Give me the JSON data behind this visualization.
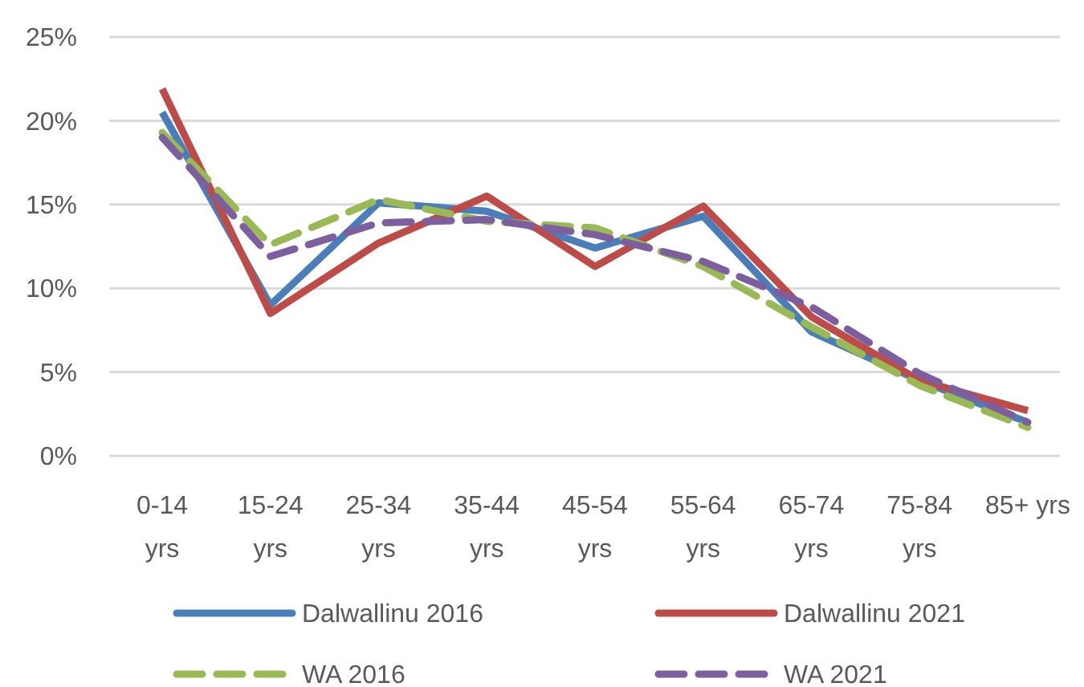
{
  "chart_data": {
    "type": "line",
    "categories": [
      "0-14 yrs",
      "15-24 yrs",
      "25-34 yrs",
      "35-44 yrs",
      "45-54 yrs",
      "55-64 yrs",
      "65-74 yrs",
      "75-84 yrs",
      "85+ yrs"
    ],
    "series": [
      {
        "name": "Dalwallinu 2016",
        "color": "#4a7ebb",
        "line_style": "solid",
        "values": [
          20.5,
          9.0,
          15.1,
          14.6,
          12.4,
          14.3,
          7.4,
          4.5,
          2.0
        ]
      },
      {
        "name": "Dalwallinu 2021",
        "color": "#be4b48",
        "line_style": "solid",
        "values": [
          21.9,
          8.5,
          12.7,
          15.5,
          11.3,
          14.9,
          8.3,
          4.5,
          2.7
        ]
      },
      {
        "name": "WA 2016",
        "color": "#98b954",
        "line_style": "dashed",
        "values": [
          19.3,
          12.6,
          15.3,
          14.0,
          13.6,
          11.3,
          7.7,
          4.2,
          1.7
        ]
      },
      {
        "name": "WA 2021",
        "color": "#7d5fa0",
        "line_style": "dashed",
        "values": [
          19.0,
          11.9,
          13.9,
          14.1,
          13.2,
          11.6,
          8.9,
          4.9,
          2.0
        ]
      }
    ],
    "ylim": [
      0,
      25
    ],
    "yticks": [
      {
        "value": 0,
        "label": "0%"
      },
      {
        "value": 5,
        "label": "5%"
      },
      {
        "value": 10,
        "label": "10%"
      },
      {
        "value": 15,
        "label": "15%"
      },
      {
        "value": 20,
        "label": "20%"
      },
      {
        "value": 25,
        "label": "25%"
      }
    ],
    "grid": "y",
    "legend": "bottom",
    "marker": "none"
  }
}
